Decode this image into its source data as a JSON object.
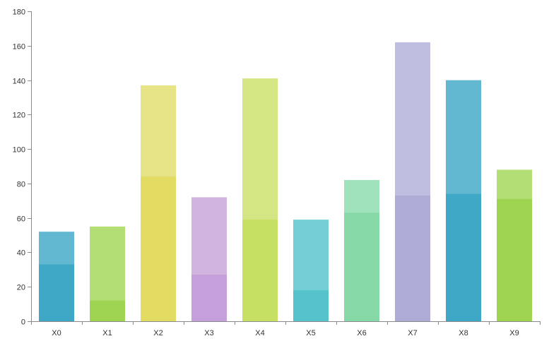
{
  "chart_data": {
    "type": "bar",
    "categories": [
      "X0",
      "X1",
      "X2",
      "X3",
      "X4",
      "X5",
      "X6",
      "X7",
      "X8",
      "X9"
    ],
    "series": [
      {
        "values": [
          33,
          12,
          84,
          27,
          59,
          18,
          63,
          73,
          74,
          71
        ]
      },
      {
        "values": [
          52,
          55,
          137,
          72,
          141,
          59,
          82,
          162,
          140,
          88
        ]
      }
    ],
    "colors_inner": [
      "#3fa8c6",
      "#9fd453",
      "#e2dc63",
      "#c59fdb",
      "#c6e063",
      "#55c2cc",
      "#86d9a7",
      "#afabd7",
      "#3fa8c6",
      "#9fd453"
    ],
    "colors_outer": [
      "#63b8d1",
      "#b3de75",
      "#e7e387",
      "#d1b4df",
      "#d3e683",
      "#75ced6",
      "#a0e2bb",
      "#bfbee0",
      "#63b8d1",
      "#b3de75"
    ],
    "title": "",
    "xlabel": "",
    "ylabel": "",
    "ylim": [
      0,
      180
    ],
    "yticks": [
      0,
      20,
      40,
      60,
      80,
      100,
      120,
      140,
      160,
      180
    ],
    "grid": false,
    "legend": "none"
  }
}
